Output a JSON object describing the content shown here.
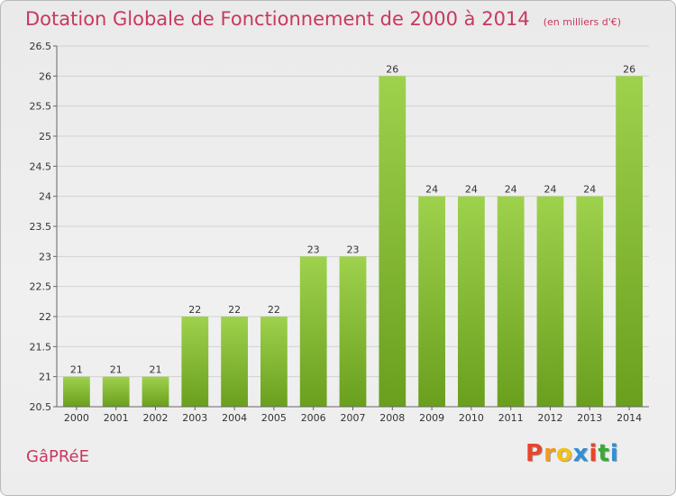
{
  "header": {
    "title": "Dotation Globale de Fonctionnement de 2000 à 2014",
    "subtitle": "(en milliers d'€)"
  },
  "footer": {
    "place": "GâPRéE",
    "brand": "Proxiti",
    "brand_colors": [
      "#e8452c",
      "#f59b1e",
      "#f2c21b",
      "#2f8fd8",
      "#e8452c",
      "#3aaa35",
      "#2f8fd8"
    ]
  },
  "colors": {
    "bar_light": "#9ed24d",
    "bar_dark": "#6a9f1e",
    "accent": "#c8385e",
    "grid": "#d2d2d2"
  },
  "chart_data": {
    "type": "bar",
    "title": "Dotation Globale de Fonctionnement de 2000 à 2014",
    "subtitle": "(en milliers d'€)",
    "xlabel": "",
    "ylabel": "",
    "categories": [
      "2000",
      "2001",
      "2002",
      "2003",
      "2004",
      "2005",
      "2006",
      "2007",
      "2008",
      "2009",
      "2010",
      "2011",
      "2012",
      "2013",
      "2014"
    ],
    "values": [
      21,
      21,
      21,
      22,
      22,
      22,
      23,
      23,
      26,
      24,
      24,
      24,
      24,
      24,
      26
    ],
    "data_labels": [
      "21",
      "21",
      "21",
      "22",
      "22",
      "22",
      "23",
      "23",
      "26",
      "24",
      "24",
      "24",
      "24",
      "24",
      "26"
    ],
    "ylim": [
      20.5,
      26.5
    ],
    "yticks": [
      20.5,
      21,
      21.5,
      22,
      22.5,
      23,
      23.5,
      24,
      24.5,
      25,
      25.5,
      26,
      26.5
    ],
    "ytick_labels": [
      "20.5",
      "21",
      "21.5",
      "22",
      "22.5",
      "23",
      "23.5",
      "24",
      "24.5",
      "25",
      "25.5",
      "26",
      "26.5"
    ],
    "grid": true,
    "legend": "none"
  }
}
